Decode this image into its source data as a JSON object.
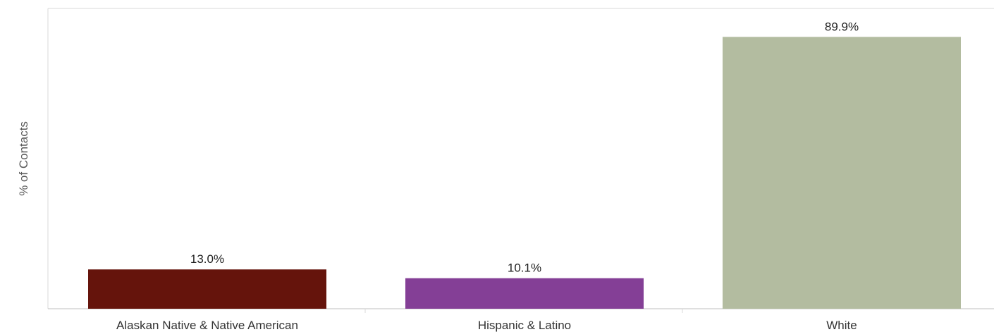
{
  "chart_data": {
    "type": "bar",
    "title": "",
    "xlabel": "",
    "ylabel": "% of Contacts",
    "categories": [
      "Alaskan Native & Native American",
      "Hispanic & Latino",
      "White"
    ],
    "values": [
      13.0,
      10.1,
      89.9
    ],
    "data_labels": [
      "13.0%",
      "10.1%",
      "89.9%"
    ],
    "colors": [
      "#65140c",
      "#843f96",
      "#b3bca0"
    ],
    "ylim": [
      0,
      100
    ],
    "grid": false,
    "legend": "none"
  }
}
